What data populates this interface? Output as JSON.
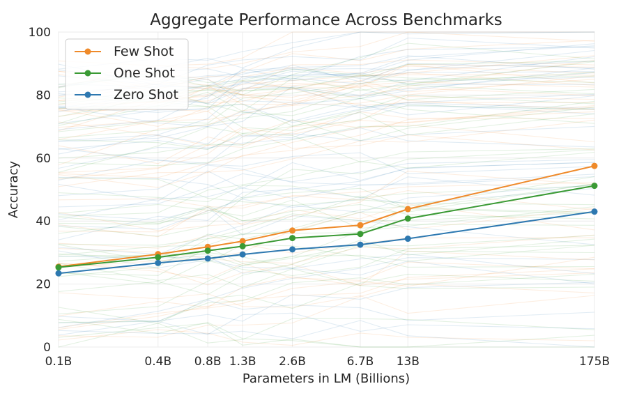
{
  "chart_data": {
    "type": "line",
    "title": "Aggregate Performance Across Benchmarks",
    "xlabel": "Parameters in LM (Billions)",
    "ylabel": "Accuracy",
    "x": [
      0.1,
      0.4,
      0.8,
      1.3,
      2.6,
      6.7,
      13,
      175
    ],
    "xtick_labels": [
      "0.1B",
      "0.4B",
      "0.8B",
      "1.3B",
      "2.6B",
      "6.7B",
      "13B",
      "175B"
    ],
    "x_scale": "log",
    "ylim": [
      0,
      100
    ],
    "yticks": [
      "0",
      "20",
      "40",
      "60",
      "80",
      "100"
    ],
    "grid": true,
    "legend_position": "top-left",
    "series": [
      {
        "name": "Few Shot",
        "color": "#ef8a2a",
        "values": [
          25.5,
          29.5,
          31.8,
          33.6,
          37.0,
          38.7,
          43.8,
          57.5
        ]
      },
      {
        "name": "One Shot",
        "color": "#3a9a34",
        "values": [
          25.3,
          28.5,
          30.6,
          32.0,
          34.6,
          35.9,
          40.8,
          51.2
        ]
      },
      {
        "name": "Zero Shot",
        "color": "#2d78b0",
        "values": [
          23.4,
          26.7,
          28.1,
          29.4,
          31.0,
          32.5,
          34.4,
          43.0
        ]
      }
    ]
  }
}
